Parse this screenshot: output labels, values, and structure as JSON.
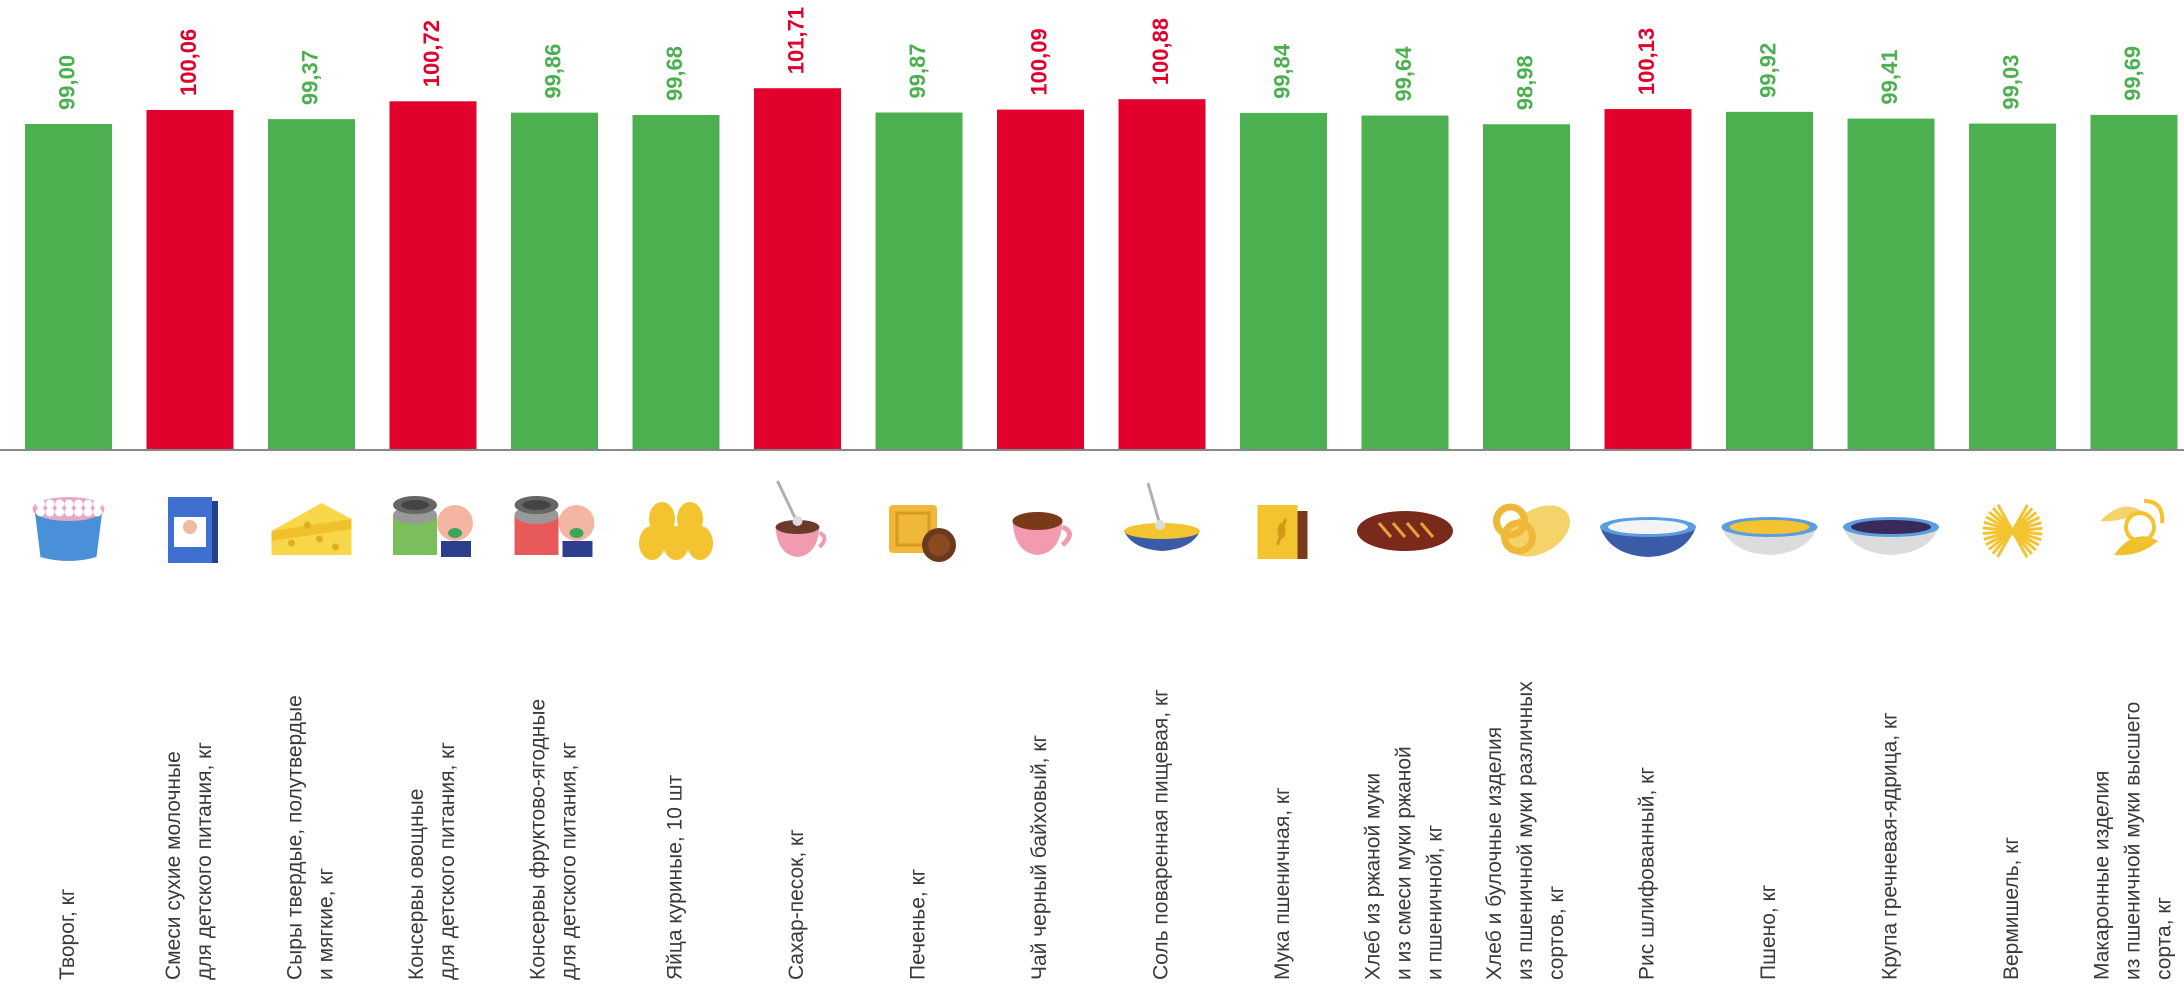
{
  "chart_data": {
    "type": "bar",
    "categories": [
      {
        "lines": [
          "Творог, кг"
        ],
        "icon": "cottage-cheese-bowl-icon"
      },
      {
        "lines": [
          "Смеси сухие молочные",
          "для детского питания, кг"
        ],
        "icon": "baby-formula-box-icon"
      },
      {
        "lines": [
          "Сыры твердые, полутвердые",
          "и мягкие, кг"
        ],
        "icon": "cheese-icon"
      },
      {
        "lines": [
          "Консервы овощные",
          "для детского питания, кг"
        ],
        "icon": "vegetable-baby-food-can-icon"
      },
      {
        "lines": [
          "Консервы фруктово-ягодные",
          "для детского питания, кг"
        ],
        "icon": "fruit-baby-food-can-icon"
      },
      {
        "lines": [
          "Яйца куриные, 10 шт"
        ],
        "icon": "eggs-icon"
      },
      {
        "lines": [
          "Сахар-песок, кг"
        ],
        "icon": "sugar-cup-icon"
      },
      {
        "lines": [
          "Печенье, кг"
        ],
        "icon": "cookies-icon"
      },
      {
        "lines": [
          "Чай черный байховый, кг"
        ],
        "icon": "tea-cup-icon"
      },
      {
        "lines": [
          "Соль поваренная пищевая, кг"
        ],
        "icon": "salt-bowl-icon"
      },
      {
        "lines": [
          "Мука пшеничная, кг"
        ],
        "icon": "flour-bag-icon"
      },
      {
        "lines": [
          "Хлеб из ржаной муки",
          "и из смеси муки ржаной",
          "и пшеничной, кг"
        ],
        "icon": "rye-bread-icon"
      },
      {
        "lines": [
          "Хлеб и булочные изделия",
          "из пшеничной муки различных",
          "сортов, кг"
        ],
        "icon": "pretzel-loaf-icon"
      },
      {
        "lines": [
          "Рис шлифованный, кг"
        ],
        "icon": "rice-bowl-icon"
      },
      {
        "lines": [
          "Пшено, кг"
        ],
        "icon": "millet-bowl-icon"
      },
      {
        "lines": [
          "Крупа гречневая-ядрица, кг"
        ],
        "icon": "buckwheat-bowl-icon"
      },
      {
        "lines": [
          "Вермишель, кг"
        ],
        "icon": "vermicelli-icon"
      },
      {
        "lines": [
          "Макаронные изделия",
          "из пшеничной муки высшего",
          "сорта, кг"
        ],
        "icon": "pasta-icon"
      }
    ],
    "values": [
      99.0,
      100.06,
      99.37,
      100.72,
      99.86,
      99.68,
      101.71,
      99.87,
      100.09,
      100.88,
      99.84,
      99.64,
      98.98,
      100.13,
      99.92,
      99.41,
      99.03,
      99.69
    ],
    "value_labels": [
      "99,00",
      "100,06",
      "99,37",
      "100,72",
      "99,86",
      "99,68",
      "101,71",
      "99,87",
      "100,09",
      "100,88",
      "99,84",
      "99,64",
      "98,98",
      "100,13",
      "99,92",
      "99,41",
      "99,03",
      "99,69"
    ],
    "threshold": 100,
    "colors": {
      "below_or_equal": "#4caf50",
      "above": "#e2002c",
      "baseline": "#888888"
    },
    "title": "",
    "xlabel": "",
    "ylabel": "",
    "grid": false,
    "legend": "none"
  }
}
